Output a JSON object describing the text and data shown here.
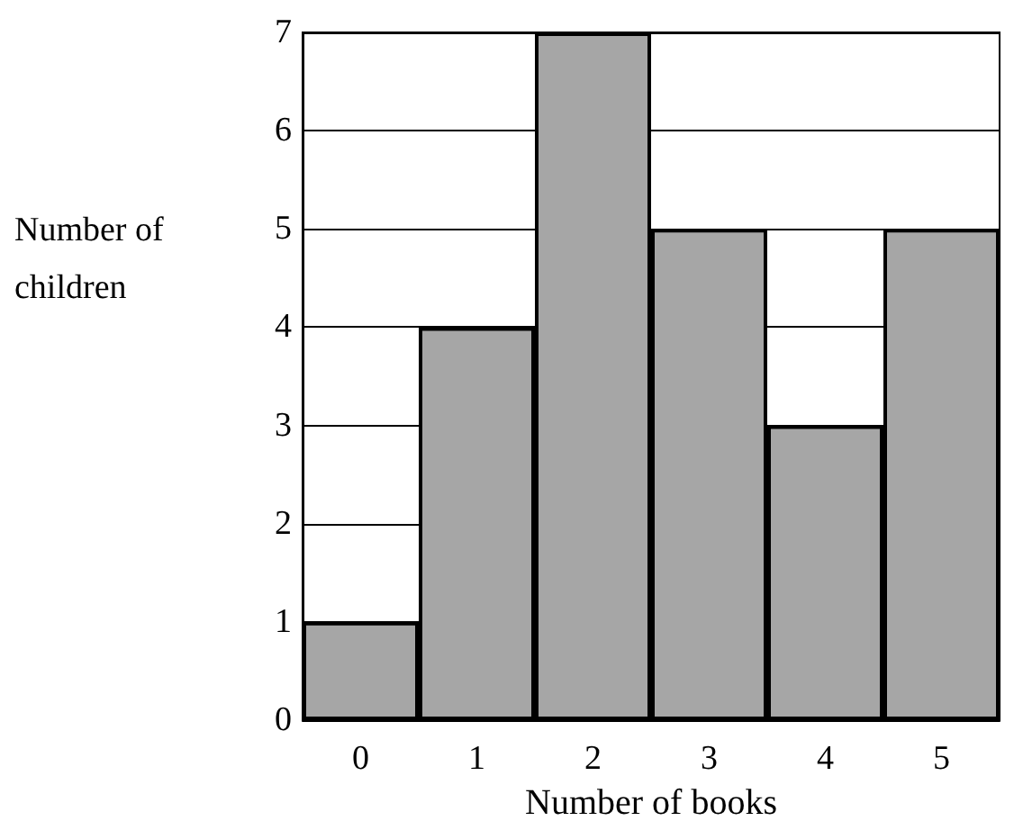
{
  "chart_data": {
    "type": "bar",
    "xlabel": "Number of books",
    "ylabel": "Number of\nchildren",
    "categories": [
      "0",
      "1",
      "2",
      "3",
      "4",
      "5"
    ],
    "values": [
      1,
      4,
      7,
      5,
      3,
      5
    ],
    "color": "#a6a6a6",
    "ylim": [
      0,
      7
    ],
    "yticks": [
      0,
      1,
      2,
      3,
      4,
      5,
      6,
      7
    ],
    "grid": "y"
  }
}
